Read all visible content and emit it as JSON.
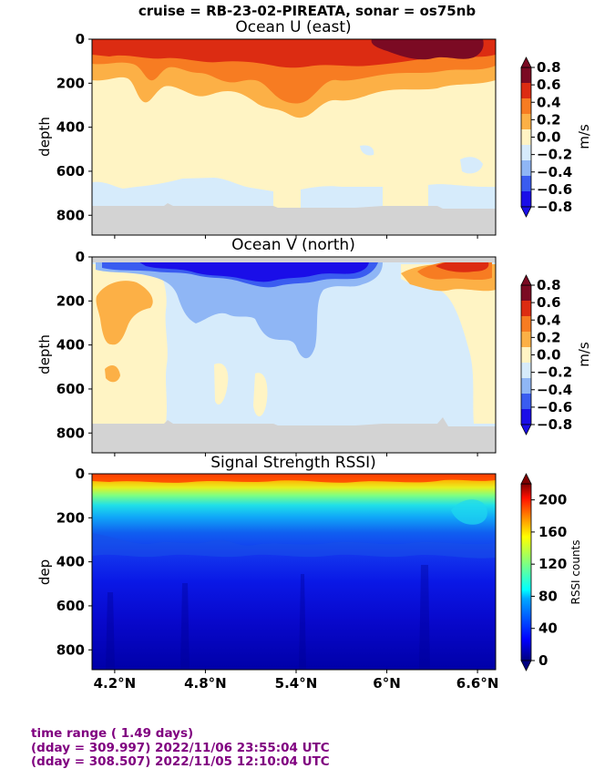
{
  "suptitle": "cruise = RB-23-02-PIREATA,  sonar = os75nb",
  "footer": {
    "line1": "time range ( 1.49 days)",
    "line2": "(dday = 309.997) 2022/11/06 23:55:04 UTC",
    "line3": "(dday = 308.507) 2022/11/05 12:10:04 UTC"
  },
  "chart_data": [
    {
      "type": "heatmap",
      "title": "Ocean U (east)",
      "ylabel": "depth",
      "y_inverted": true,
      "ylim": [
        890,
        0
      ],
      "yticks": [
        "0",
        "200",
        "400",
        "600",
        "800"
      ],
      "xlim": [
        4.05,
        6.72
      ],
      "xticks": [
        4.2,
        4.8,
        5.4,
        6.0,
        6.6
      ],
      "colorbar": {
        "label": "m/s",
        "levels": [
          -0.8,
          -0.6,
          -0.4,
          -0.2,
          0.0,
          0.2,
          0.4,
          0.6,
          0.8
        ],
        "ticklabels": [
          "−0.8",
          "−0.6",
          "−0.4",
          "−0.2",
          "0.0",
          "0.2",
          "0.4",
          "0.6",
          "0.8"
        ],
        "colors": [
          "#1a0ee8",
          "#3a5cf0",
          "#8fb6f5",
          "#d6ebfb",
          "#fff4c4",
          "#fcb046",
          "#f77c22",
          "#dc2c12",
          "#7b0a23"
        ]
      }
    },
    {
      "type": "heatmap",
      "title": "Ocean V (north)",
      "ylabel": "depth",
      "y_inverted": true,
      "ylim": [
        890,
        0
      ],
      "yticks": [
        "0",
        "200",
        "400",
        "600",
        "800"
      ],
      "xlim": [
        4.05,
        6.72
      ],
      "xticks": [
        4.2,
        4.8,
        5.4,
        6.0,
        6.6
      ],
      "colorbar": {
        "label": "m/s",
        "levels": [
          -0.8,
          -0.6,
          -0.4,
          -0.2,
          0.0,
          0.2,
          0.4,
          0.6,
          0.8
        ],
        "ticklabels": [
          "−0.8",
          "−0.6",
          "−0.4",
          "−0.2",
          "0.0",
          "0.2",
          "0.4",
          "0.6",
          "0.8"
        ],
        "colors": [
          "#1a0ee8",
          "#3a5cf0",
          "#8fb6f5",
          "#d6ebfb",
          "#fff4c4",
          "#fcb046",
          "#f77c22",
          "#dc2c12",
          "#7b0a23"
        ]
      }
    },
    {
      "type": "heatmap",
      "title": "Signal Strength RSSI)",
      "ylabel": "dep",
      "y_inverted": true,
      "ylim": [
        890,
        0
      ],
      "yticks": [
        "0",
        "200",
        "400",
        "600",
        "800"
      ],
      "xlim": [
        4.05,
        6.72
      ],
      "xticks": [
        4.2,
        4.8,
        5.4,
        6.0,
        6.6
      ],
      "xticklabels": [
        "4.2°N",
        "4.8°N",
        "5.4°N",
        "6°N",
        "6.6°N"
      ],
      "colorbar": {
        "label": "RSSI counts",
        "range": [
          0,
          220
        ],
        "ticks": [
          0,
          40,
          80,
          120,
          160,
          200
        ],
        "ticklabels": [
          "0",
          "40",
          "80",
          "120",
          "160",
          "200"
        ]
      }
    }
  ]
}
